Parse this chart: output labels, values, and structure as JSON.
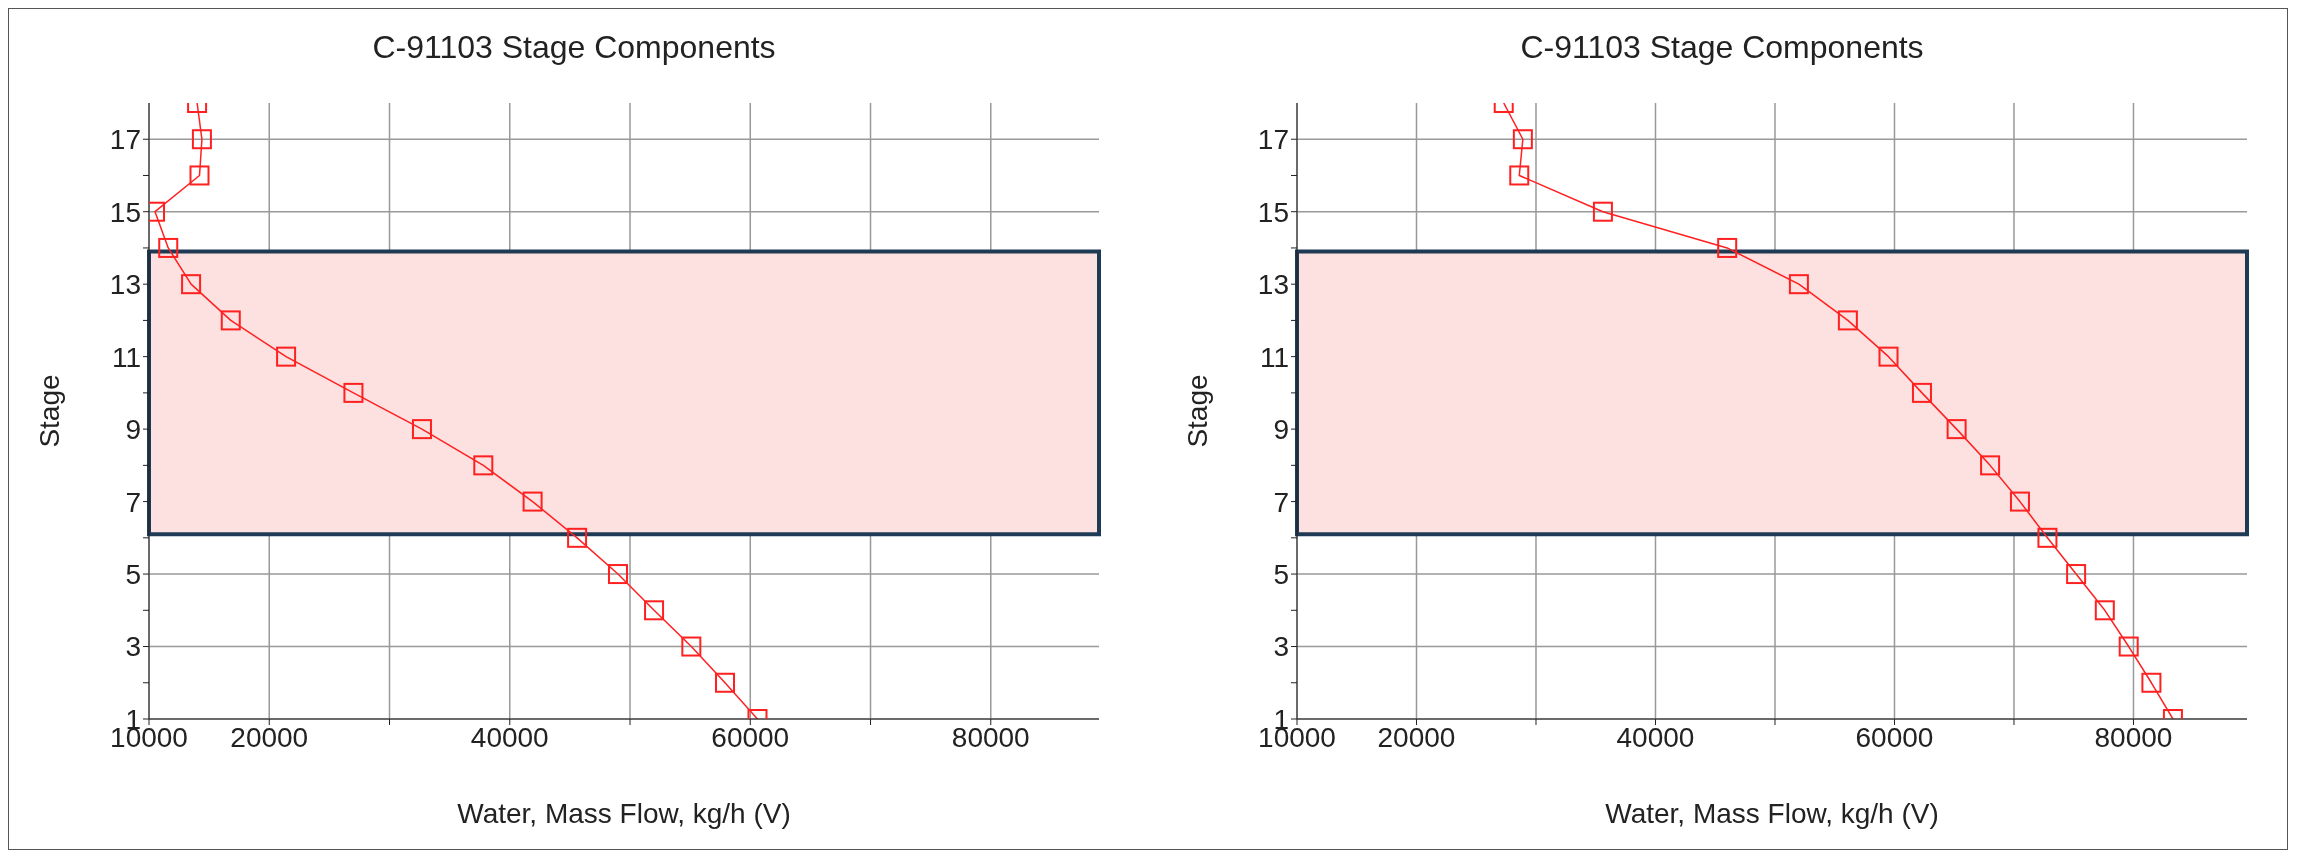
{
  "chart_data": [
    {
      "type": "line",
      "title": "C-91103 Stage Components",
      "xlabel": "Water, Mass Flow, kg/h (V)",
      "ylabel": "Stage",
      "x": [
        14000,
        14400,
        14200,
        10500,
        11600,
        13500,
        16800,
        21400,
        27000,
        32700,
        37800,
        41900,
        45600,
        49000,
        52000,
        55100,
        57900,
        60600
      ],
      "series": [
        {
          "color": "#ff2020",
          "values": [
            18,
            17,
            16,
            15,
            14,
            13,
            12,
            11,
            10,
            9,
            8,
            7,
            6,
            5,
            4,
            3,
            2,
            1
          ]
        }
      ],
      "xlim": [
        10000,
        89000
      ],
      "xticks": [
        10000,
        20000,
        {
          "value": 30000,
          "label": null
        },
        40000,
        {
          "value": 50000,
          "label": null
        },
        60000,
        {
          "value": 70000,
          "label": null
        },
        80000
      ],
      "ylim": [
        1,
        18
      ],
      "yticks": [
        1,
        {
          "value": 2,
          "label": null
        },
        3,
        {
          "value": 4,
          "label": null
        },
        5,
        {
          "value": 6,
          "label": null
        },
        7,
        {
          "value": 8,
          "label": null
        },
        9,
        {
          "value": 10,
          "label": null
        },
        11,
        {
          "value": 12,
          "label": null
        },
        13,
        {
          "value": 14,
          "label": null
        },
        15,
        {
          "value": 16,
          "label": null
        },
        17
      ],
      "bands": [
        {
          "axis": "y",
          "from": 6.1,
          "to": 13.9,
          "color": "#fde0e0"
        }
      ],
      "grid": true,
      "legend": false,
      "marker": "square",
      "line_style": "solid"
    },
    {
      "type": "line",
      "title": "C-91103 Stage Components",
      "xlabel": "Water, Mass Flow, kg/h (V)",
      "ylabel": "Stage",
      "x": [
        27300,
        28900,
        28600,
        35600,
        46000,
        52000,
        56100,
        59500,
        62300,
        65200,
        68000,
        70500,
        72800,
        75200,
        77600,
        79600,
        81500,
        83300
      ],
      "series": [
        {
          "color": "#ff2020",
          "values": [
            18,
            17,
            16,
            15,
            14,
            13,
            12,
            11,
            10,
            9,
            8,
            7,
            6,
            5,
            4,
            3,
            2,
            1
          ]
        }
      ],
      "xlim": [
        10000,
        89500
      ],
      "xticks": [
        10000,
        20000,
        {
          "value": 30000,
          "label": null
        },
        40000,
        {
          "value": 50000,
          "label": null
        },
        60000,
        {
          "value": 70000,
          "label": null
        },
        80000
      ],
      "ylim": [
        1,
        18
      ],
      "yticks": [
        1,
        {
          "value": 2,
          "label": null
        },
        3,
        {
          "value": 4,
          "label": null
        },
        5,
        {
          "value": 6,
          "label": null
        },
        7,
        {
          "value": 8,
          "label": null
        },
        9,
        {
          "value": 10,
          "label": null
        },
        11,
        {
          "value": 12,
          "label": null
        },
        13,
        {
          "value": 14,
          "label": null
        },
        15,
        {
          "value": 16,
          "label": null
        },
        17
      ],
      "bands": [
        {
          "axis": "y",
          "from": 6.1,
          "to": 13.9,
          "color": "#fde0e0"
        }
      ],
      "grid": true,
      "legend": false,
      "marker": "square",
      "line_style": "solid"
    }
  ]
}
